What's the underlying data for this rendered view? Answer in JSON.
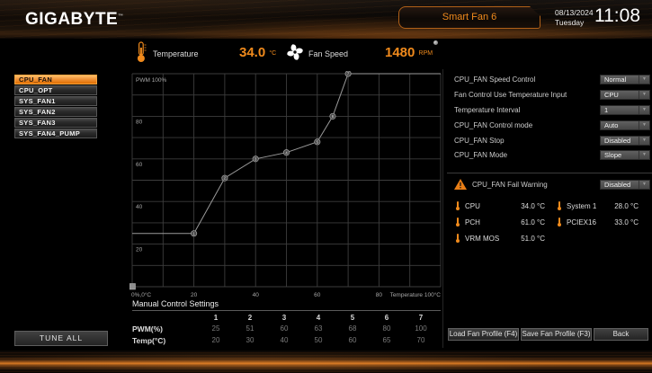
{
  "topbar": {
    "logo": "GIGABYTE",
    "logo_tm": "™",
    "tab": "Smart Fan 6",
    "date": "08/13/2024",
    "day": "Tuesday",
    "time": "11:08"
  },
  "readout": {
    "temperature_label": "Temperature",
    "temperature_value": "34.0",
    "temperature_unit": "°C",
    "fan_speed_label": "Fan Speed",
    "fan_speed_value": "1480",
    "fan_speed_unit": "RPM"
  },
  "sidebar": {
    "items": [
      {
        "label": "CPU_FAN",
        "selected": true
      },
      {
        "label": "CPU_OPT",
        "selected": false
      },
      {
        "label": "SYS_FAN1",
        "selected": false
      },
      {
        "label": "SYS_FAN2",
        "selected": false
      },
      {
        "label": "SYS_FAN3",
        "selected": false
      },
      {
        "label": "SYS_FAN4_PUMP",
        "selected": false
      }
    ]
  },
  "chart_data": {
    "type": "line",
    "title": "CPU_FAN fan curve (PWM % vs Temperature °C)",
    "xlabel": "Temperature (°C)",
    "ylabel": "PWM (%)",
    "xlim": [
      0,
      100
    ],
    "ylim": [
      0,
      100
    ],
    "grid": true,
    "x": [
      20,
      30,
      40,
      50,
      60,
      65,
      70
    ],
    "series": [
      {
        "name": "CPU_FAN",
        "values": [
          25,
          51,
          60,
          63,
          68,
          80,
          100
        ]
      }
    ]
  },
  "graph": {
    "y_top_label": "PWM 100%",
    "y_ticks": [
      "80",
      "60",
      "40",
      "20"
    ],
    "origin_label": "0%,0°C",
    "x_ticks": [
      20,
      40,
      60,
      80
    ],
    "x_end_label": "Temperature 100°C"
  },
  "manual": {
    "title": "Manual Control Settings",
    "columns": [
      "1",
      "2",
      "3",
      "4",
      "5",
      "6",
      "7"
    ],
    "pwm_label": "PWM(%)",
    "pwm_values": [
      "25",
      "51",
      "60",
      "63",
      "68",
      "80",
      "100"
    ],
    "temp_label": "Temp(°C)",
    "temp_values": [
      "20",
      "30",
      "40",
      "50",
      "60",
      "65",
      "70"
    ]
  },
  "settings": {
    "rows": [
      {
        "label": "CPU_FAN Speed Control",
        "value": "Normal"
      },
      {
        "label": "Fan Control Use Temperature Input",
        "value": "CPU"
      },
      {
        "label": "Temperature Interval",
        "value": "1"
      },
      {
        "label": "CPU_FAN Control mode",
        "value": "Auto"
      },
      {
        "label": "CPU_FAN Stop",
        "value": "Disabled"
      },
      {
        "label": "CPU_FAN Mode",
        "value": "Slope"
      }
    ],
    "fail_warning": {
      "label": "CPU_FAN Fail Warning",
      "value": "Disabled"
    }
  },
  "sensors": [
    {
      "name": "CPU",
      "value": "34.0 °C"
    },
    {
      "name": "System 1",
      "value": "28.0 °C"
    },
    {
      "name": "PCH",
      "value": "61.0 °C"
    },
    {
      "name": "PCIEX16",
      "value": "33.0 °C"
    },
    {
      "name": "VRM MOS",
      "value": "51.0 °C"
    }
  ],
  "buttons": {
    "tune_all": "TUNE ALL",
    "load_profile": "Load Fan Profile (F4)",
    "save_profile": "Save Fan Profile (F3)",
    "back": "Back"
  },
  "colors": {
    "accent": "#f08a1c",
    "curve": "#9a9a9a",
    "grid": "#3d3d3d"
  }
}
